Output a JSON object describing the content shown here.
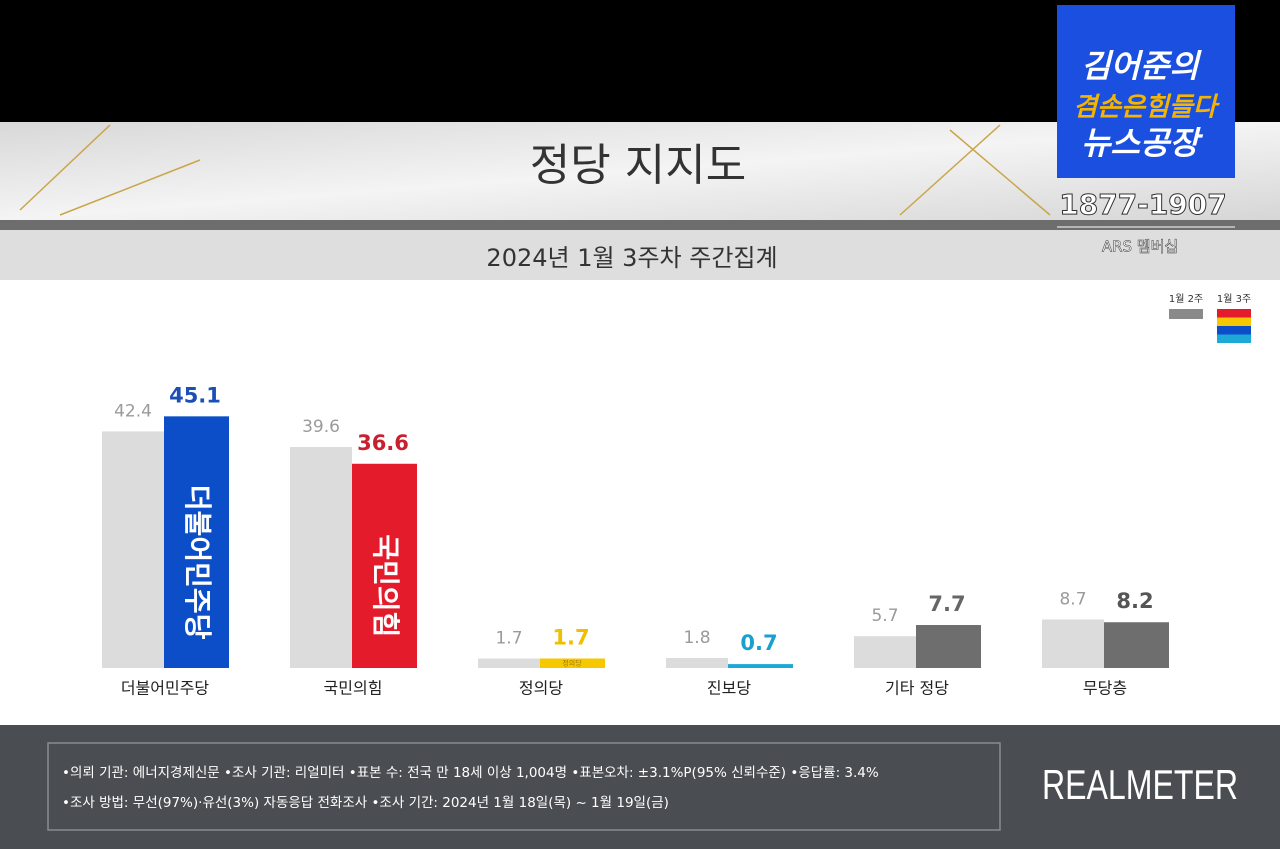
{
  "chart_data": {
    "type": "bar",
    "title": "정당 지지도",
    "subtitle": "2024년 1월 3주차 주간집계",
    "categories": [
      "더불어민주당",
      "국민의힘",
      "정의당",
      "진보당",
      "기타 정당",
      "무당층"
    ],
    "series": [
      {
        "name": "1월 2주",
        "color": "#dcdcdc",
        "label_color": "#9a9a9a",
        "values": [
          42.4,
          39.6,
          1.7,
          1.8,
          5.7,
          8.7
        ]
      },
      {
        "name": "1월 3주",
        "colors": [
          "#0b4ec8",
          "#e31b2b",
          "#f5c800",
          "#1ea8d8",
          "#6e6e6e",
          "#6e6e6e"
        ],
        "label_colors": [
          "#1a4fb5",
          "#c8202e",
          "#f0c000",
          "#1aa0d0",
          "#666666",
          "#555555"
        ],
        "values": [
          45.1,
          36.6,
          1.7,
          0.7,
          7.7,
          8.2
        ],
        "logos": [
          "더불어민주당",
          "국민의힘",
          "정의당",
          null,
          null,
          null
        ]
      }
    ],
    "ylim": [
      0,
      50
    ],
    "legend": "top-right",
    "notes": [
      "•의뢰 기관: 에너지경제신문  •조사 기관: 리얼미터 •표본 수: 전국 만 18세 이상 1,004명 •표본오차: ±3.1%P(95% 신뢰수준) •응답률: 3.4%",
      "•조사 방법: 무선(97%)·유선(3%) 자동응답 전화조사 •조사 기간: 2024년 1월 18일(목) ~ 1월 19일(금)"
    ],
    "source": "REALMETER"
  },
  "broadcast": {
    "show_name": [
      "김어준의",
      "겸손은힘들다",
      "뉴스공장"
    ],
    "phone": "1877-1907",
    "membership": "ARS 멤버십"
  }
}
